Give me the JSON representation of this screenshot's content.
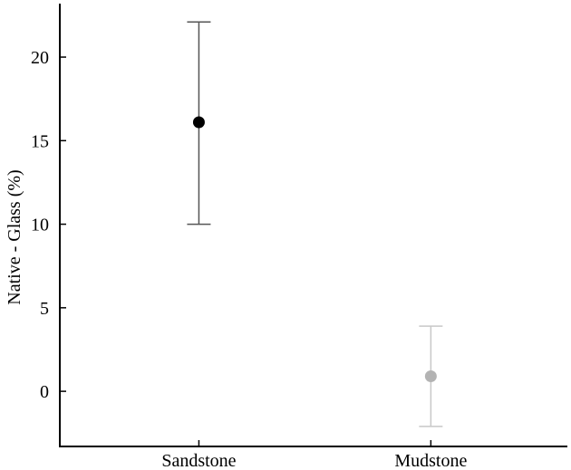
{
  "chart_data": {
    "type": "scatter",
    "title": "",
    "xlabel": "",
    "ylabel": "Native - Glass (%)",
    "ylim": [
      -3.3,
      23.2
    ],
    "yticks": [
      0,
      5,
      10,
      15,
      20
    ],
    "categories": [
      "Sandstone",
      "Mudstone"
    ],
    "points": [
      {
        "category": "Sandstone",
        "mean": 16.1,
        "lower": 10.0,
        "upper": 22.1,
        "color": "#000000",
        "errorbar_color": "#555555"
      },
      {
        "category": "Mudstone",
        "mean": 0.9,
        "lower": -2.1,
        "upper": 3.9,
        "color": "#b3b3b3",
        "errorbar_color": "#c8c8c8"
      }
    ],
    "grid": false,
    "legend": "none"
  }
}
